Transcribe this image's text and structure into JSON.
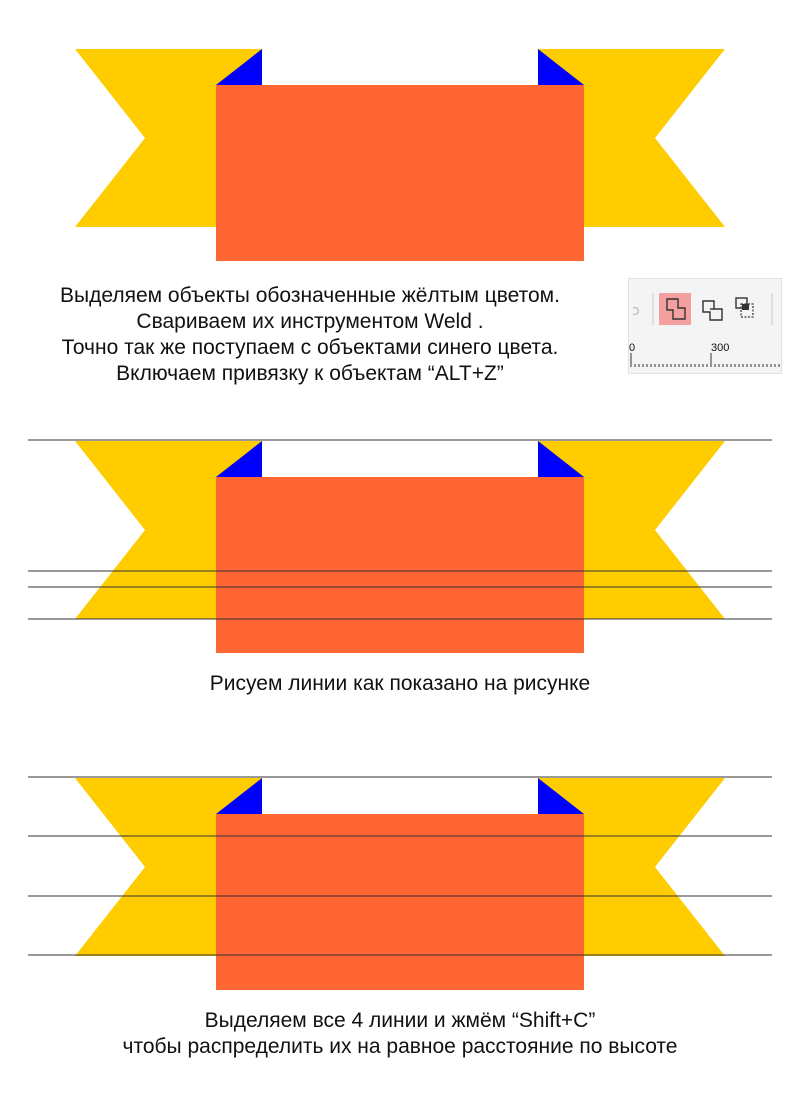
{
  "colors": {
    "ribbon_yellow": "#ffcc00",
    "ribbon_blue": "#0000ff",
    "ribbon_orange": "#ff6633",
    "guide_line": "#333333",
    "weld_highlight": "#f4a0a0"
  },
  "step1": {
    "lines": [
      "Выделяем объекты обозначенные жёлтым цветом.",
      "Свариваем их инструментом Weld .",
      "Точно так же поступаем с объектами синего цвета.",
      "Включаем привязку к объектам “ALT+Z”"
    ]
  },
  "toolbar": {
    "icons": [
      "x-icon",
      "weld-icon",
      "trim-icon",
      "intersect-icon"
    ],
    "ruler_label": "300"
  },
  "step2": {
    "caption": "Рисуем линии как показано на рисунке"
  },
  "step3": {
    "lines": [
      "Выделяем все 4 линии и жмём “Shift+C”",
      "чтобы распределить их на равное расстояние по высоте"
    ]
  }
}
